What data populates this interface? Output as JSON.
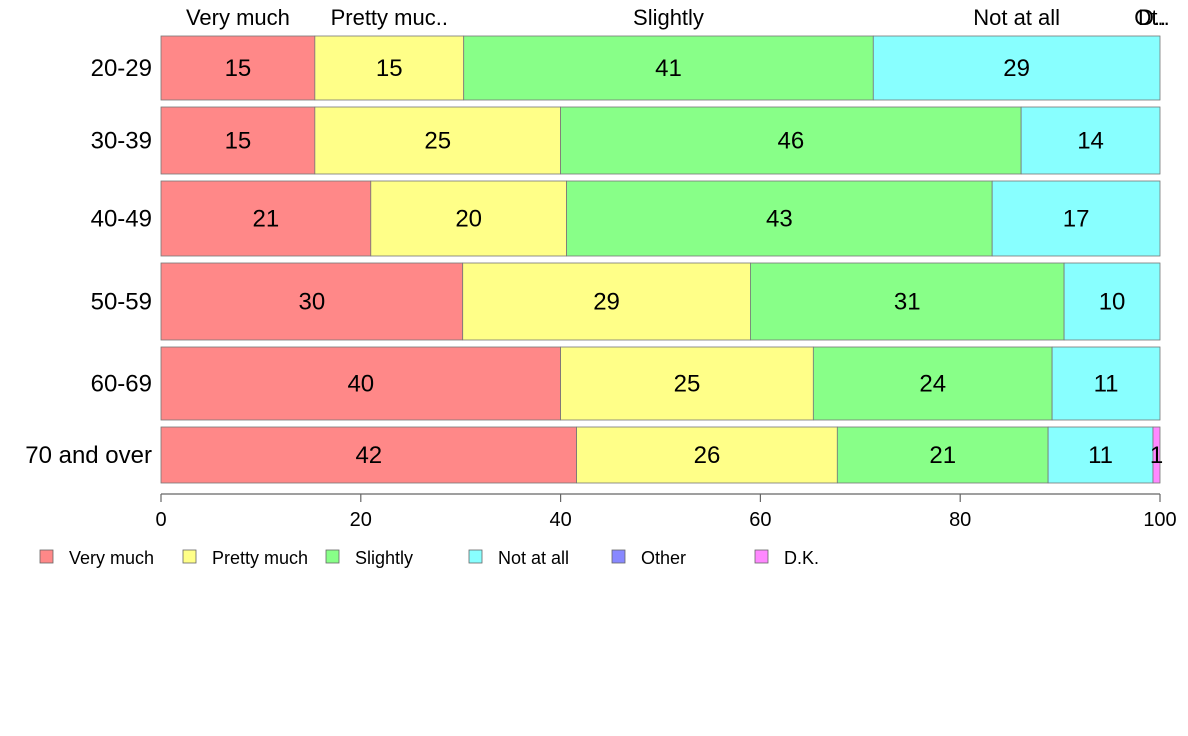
{
  "chart_data": {
    "type": "bar",
    "orientation": "horizontal",
    "stacked": true,
    "categories": [
      "20-29",
      "30-39",
      "40-49",
      "50-59",
      "60-69",
      "70 and over"
    ],
    "series": [
      {
        "name": "Very much",
        "color": "#FF8888",
        "values": [
          15.4,
          15.4,
          21.0,
          30.2,
          40.0,
          41.6
        ],
        "labels": [
          "15",
          "15",
          "21",
          "30",
          "40",
          "42"
        ]
      },
      {
        "name": "Pretty much",
        "color": "#FFFF88",
        "values": [
          14.9,
          24.6,
          19.6,
          28.8,
          25.3,
          26.1
        ],
        "labels": [
          "15",
          "25",
          "20",
          "29",
          "25",
          "26"
        ]
      },
      {
        "name": "Slightly",
        "color": "#88FF88",
        "values": [
          41.0,
          46.1,
          42.6,
          31.4,
          23.9,
          21.1
        ],
        "labels": [
          "41",
          "46",
          "43",
          "31",
          "24",
          "21"
        ]
      },
      {
        "name": "Not at all",
        "color": "#88FFFF",
        "values": [
          28.7,
          13.9,
          16.8,
          9.6,
          10.8,
          10.5
        ],
        "labels": [
          "29",
          "14",
          "17",
          "10",
          "11",
          "11"
        ]
      },
      {
        "name": "Other",
        "color": "#8888FF",
        "values": [
          0,
          0,
          0,
          0,
          0,
          0
        ],
        "labels": [
          "",
          "",
          "",
          "",
          "",
          ""
        ]
      },
      {
        "name": "D.K.",
        "color": "#FF88FF",
        "values": [
          0,
          0,
          0,
          0,
          0,
          0.7
        ],
        "labels": [
          "",
          "",
          "",
          "",
          "",
          "1"
        ]
      }
    ],
    "top_labels": [
      "Very much",
      "Pretty muc..",
      "Slightly",
      "Not at all",
      "Ot..",
      "D.."
    ],
    "xlim": [
      0,
      100
    ],
    "xticks": [
      0,
      20,
      40,
      60,
      80,
      100
    ],
    "legend": "bottom-left",
    "grid": false
  }
}
